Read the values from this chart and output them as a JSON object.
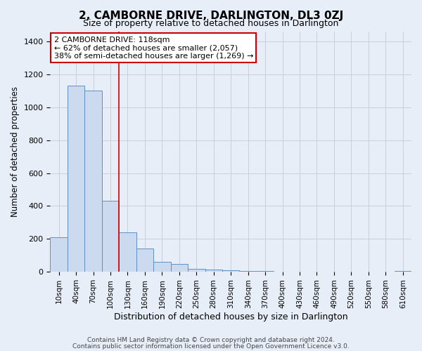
{
  "title": "2, CAMBORNE DRIVE, DARLINGTON, DL3 0ZJ",
  "subtitle": "Size of property relative to detached houses in Darlington",
  "xlabel": "Distribution of detached houses by size in Darlington",
  "ylabel": "Number of detached properties",
  "bar_labels": [
    "10sqm",
    "40sqm",
    "70sqm",
    "100sqm",
    "130sqm",
    "160sqm",
    "190sqm",
    "220sqm",
    "250sqm",
    "280sqm",
    "310sqm",
    "340sqm",
    "370sqm",
    "400sqm",
    "430sqm",
    "460sqm",
    "490sqm",
    "520sqm",
    "550sqm",
    "580sqm",
    "610sqm"
  ],
  "bar_values": [
    210,
    1130,
    1100,
    430,
    240,
    140,
    60,
    48,
    20,
    15,
    10,
    7,
    5,
    0,
    0,
    0,
    0,
    0,
    0,
    0,
    5
  ],
  "bar_color": "#ccdaf0",
  "bar_edge_color": "#6090c4",
  "vline_x": 3.5,
  "vline_color": "#cc0000",
  "annotation_title": "2 CAMBORNE DRIVE: 118sqm",
  "annotation_line1": "← 62% of detached houses are smaller (2,057)",
  "annotation_line2": "38% of semi-detached houses are larger (1,269) →",
  "annotation_box_color": "#ffffff",
  "annotation_box_edge_color": "#cc0000",
  "ylim": [
    0,
    1460
  ],
  "yticks": [
    0,
    200,
    400,
    600,
    800,
    1000,
    1200,
    1400
  ],
  "grid_color": "#c8d0dc",
  "bg_color": "#e8eef8",
  "footer1": "Contains HM Land Registry data © Crown copyright and database right 2024.",
  "footer2": "Contains public sector information licensed under the Open Government Licence v3.0."
}
